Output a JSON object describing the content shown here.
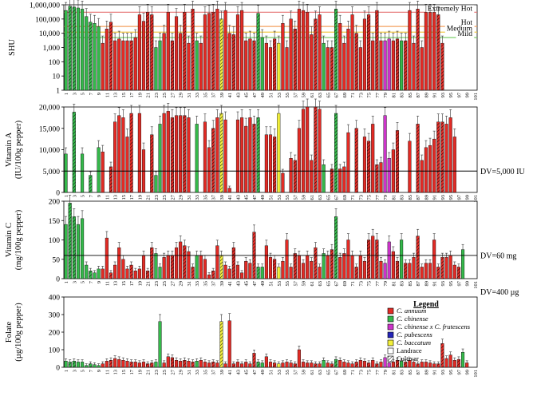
{
  "chart_data": [
    {
      "type": "bar",
      "ylabel": "SHU",
      "scale": "log",
      "ylim": [
        1,
        1000000
      ],
      "yticks": [
        "1,000,000",
        "100,000",
        "10,000",
        "1,000",
        "100",
        "10",
        "1"
      ],
      "bands": [
        {
          "label": "Extremely Hot",
          "value": 300000,
          "color": "#e57373"
        },
        {
          "label": "Hot",
          "value": 30000,
          "color": "#f4a261"
        },
        {
          "label": "Medium",
          "value": 12000,
          "color": "#f2c94c"
        },
        {
          "label": "Mild",
          "value": 5000,
          "color": "#7ccf6b"
        }
      ],
      "values": [
        400000,
        800000,
        700000,
        600000,
        500000,
        150000,
        60000,
        50000,
        30000,
        2000,
        20000,
        60000,
        3000,
        4000,
        3000,
        3000,
        3000,
        5000,
        200000,
        70000,
        300000,
        200000,
        1000,
        3000,
        10000,
        300000,
        3000,
        150000,
        10000,
        300000,
        2000,
        500000,
        3000,
        2000,
        200000,
        250000,
        300000,
        500000,
        100000,
        400000,
        10000,
        8000,
        200000,
        400000,
        3000,
        4000,
        3000,
        250000,
        5000,
        2000,
        1000,
        4000,
        2000,
        50000,
        1000,
        100000,
        20000,
        500000,
        400000,
        300000,
        8000,
        100000,
        200000,
        2000,
        1000,
        1000,
        500000,
        50000,
        2000,
        20000,
        200000,
        10000,
        1000,
        100000,
        200000,
        3000,
        400000,
        3000,
        3000,
        4000,
        3000,
        4000,
        3000,
        3000,
        400000,
        2000,
        500000,
        1000,
        300000,
        300000,
        300000,
        200000,
        2000,
        0,
        0,
        0,
        0,
        0,
        0,
        0,
        0
      ]
    },
    {
      "type": "bar",
      "ylabel": "Vitamin A\n(IU/100g pepper)",
      "ylim": [
        0,
        20000
      ],
      "yticks": [
        "20,000",
        "15,000",
        "10,000",
        "5,000",
        "0"
      ],
      "reference_line": {
        "value": 5000,
        "label": "DV=5,000 IU"
      },
      "values": [
        9000,
        0,
        18800,
        0,
        9000,
        0,
        4000,
        0,
        10500,
        9500,
        0,
        6000,
        16500,
        18000,
        17500,
        13000,
        18500,
        0,
        18500,
        10000,
        0,
        13500,
        4000,
        16000,
        18500,
        19000,
        17500,
        18000,
        18000,
        18000,
        17500,
        0,
        16000,
        0,
        16500,
        10500,
        15000,
        17500,
        18500,
        17000,
        1000,
        0,
        17000,
        17500,
        15500,
        17500,
        16000,
        17500,
        0,
        13500,
        13500,
        13000,
        18500,
        4500,
        0,
        8000,
        7500,
        15000,
        19500,
        20000,
        7500,
        20000,
        19500,
        6500,
        0,
        5500,
        18500,
        5500,
        6000,
        14000,
        0,
        15000,
        0,
        13000,
        12000,
        16000,
        6500,
        7000,
        18000,
        8000,
        10000,
        14500,
        0,
        0,
        12000,
        0,
        16000,
        7500,
        10500,
        11000,
        12500,
        16500,
        16500,
        16000,
        17500,
        13000,
        0,
        0,
        0,
        0,
        0
      ]
    },
    {
      "type": "bar",
      "ylabel": "Vitamin C\n(mg/100g pepper)",
      "ylim": [
        0,
        200
      ],
      "yticks": [
        "200",
        "150",
        "100",
        "50",
        "0"
      ],
      "reference_line": {
        "value": 60,
        "label": "DV=60 mg"
      },
      "values": [
        140,
        195,
        160,
        140,
        155,
        35,
        20,
        15,
        25,
        25,
        105,
        15,
        35,
        80,
        50,
        25,
        35,
        20,
        25,
        60,
        20,
        80,
        65,
        30,
        55,
        60,
        60,
        80,
        95,
        85,
        70,
        30,
        60,
        60,
        50,
        10,
        20,
        85,
        60,
        35,
        25,
        80,
        35,
        15,
        45,
        40,
        120,
        30,
        30,
        85,
        55,
        50,
        30,
        45,
        100,
        30,
        65,
        60,
        40,
        60,
        45,
        80,
        30,
        65,
        60,
        75,
        160,
        55,
        65,
        100,
        60,
        30,
        60,
        45,
        100,
        110,
        100,
        45,
        40,
        95,
        70,
        45,
        100,
        40,
        40,
        55,
        110,
        30,
        40,
        40,
        100,
        30,
        55,
        55,
        60,
        35,
        30,
        75,
        0,
        0,
        0
      ]
    },
    {
      "type": "bar",
      "ylabel": "Folate\n(µg/100g pepper)",
      "ylim": [
        0,
        400
      ],
      "yticks": [
        "400",
        "300",
        "200",
        "100",
        "0"
      ],
      "reference_line": {
        "value": 400,
        "label": "DV=400 µg"
      },
      "values": [
        35,
        30,
        35,
        30,
        30,
        10,
        20,
        15,
        10,
        20,
        35,
        40,
        50,
        45,
        40,
        35,
        30,
        30,
        25,
        30,
        20,
        25,
        30,
        260,
        25,
        60,
        55,
        40,
        35,
        40,
        35,
        30,
        35,
        40,
        30,
        25,
        30,
        25,
        260,
        20,
        265,
        20,
        30,
        20,
        30,
        20,
        80,
        30,
        25,
        60,
        30,
        25,
        20,
        25,
        30,
        25,
        20,
        100,
        30,
        25,
        25,
        20,
        20,
        40,
        25,
        20,
        45,
        40,
        30,
        25,
        20,
        30,
        40,
        35,
        25,
        40,
        20,
        30,
        55,
        25,
        30,
        40,
        35,
        30,
        40,
        30,
        20,
        30,
        30,
        25,
        20,
        20,
        135,
        50,
        70,
        40,
        45,
        85,
        25,
        0,
        0
      ]
    }
  ],
  "categories_shown": [
    "1",
    "3",
    "5",
    "7",
    "9",
    "11",
    "13",
    "15",
    "17",
    "19",
    "21",
    "23",
    "25",
    "27",
    "29",
    "31",
    "33",
    "35",
    "37",
    "39",
    "41",
    "43",
    "45",
    "47",
    "49",
    "51",
    "53",
    "55",
    "57",
    "59",
    "61",
    "63",
    "65",
    "67",
    "69",
    "71",
    "73",
    "75",
    "77",
    "79",
    "81",
    "83",
    "85",
    "87",
    "89",
    "91",
    "93",
    "95",
    "97",
    "99",
    "101"
  ],
  "species": [
    "annuum",
    "chinense",
    "cross",
    "pubescens",
    "baccatum"
  ],
  "species_colors": {
    "annuum": "#e22b25",
    "chinense": "#34b94a",
    "cross": "#cc34c9",
    "pubescens": "#2424b8",
    "baccatum": "#f2ef3a"
  },
  "accession_species": "CCCCCCCPPAAAAAAAAAAAAACCAAAAAAAACAAAAABAAAAAAAAPPAAABAAAAAAAAAACAACAAAAAAAAAAAXXAACAAAAAAAAAAAAAAPAACCCCCCCAAAAAA",
  "legend": {
    "title": "Legend",
    "items": [
      {
        "label": "C. annuum",
        "swatch": "annuum"
      },
      {
        "label": "C. chinense",
        "swatch": "chinense"
      },
      {
        "label": "C. chinense x C. frutescens",
        "swatch": "cross"
      },
      {
        "label": "C. pubescens",
        "swatch": "pubescens"
      },
      {
        "label": "C. baccatum",
        "swatch": "baccatum"
      },
      {
        "label": "Landrace",
        "swatch": "landrace"
      },
      {
        "label": "Cultivar",
        "swatch": "cultivar"
      }
    ]
  }
}
